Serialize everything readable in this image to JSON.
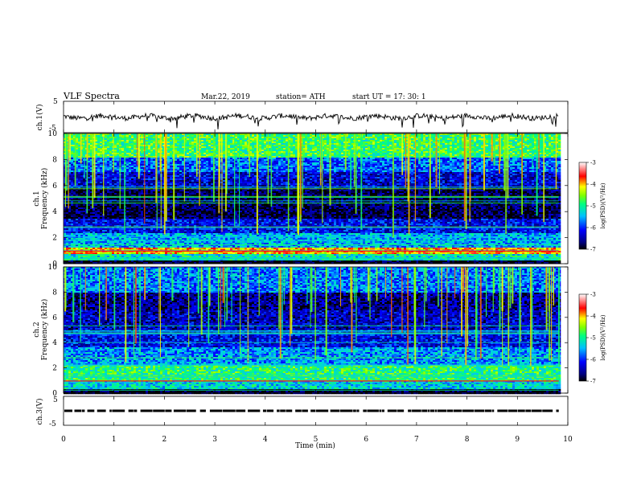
{
  "header": {
    "title": "VLF  Spectra",
    "date": "Mar.22, 2019",
    "station": "station= ATH",
    "start": "start  UT  =    17: 30: 1"
  },
  "chart_data": {
    "type": "heatmap",
    "xlabel": "Time  (min)",
    "xlim": [
      0,
      10
    ],
    "xticks": [
      "0",
      "1",
      "2",
      "3",
      "4",
      "5",
      "6",
      "7",
      "8",
      "9",
      "10"
    ],
    "waveform_panels": [
      {
        "ylabel": "ch.1(V)",
        "ylim": [
          -5,
          5
        ],
        "yticks": [
          "5",
          "-5"
        ],
        "baseline": 0
      },
      {
        "ylabel": "ch.3(V)",
        "ylim": [
          -5,
          5
        ],
        "yticks": [
          "5",
          "-5"
        ],
        "baseline": 0
      }
    ],
    "spectrogram_panels": [
      {
        "ylabel": "ch.1\nFrequency (kHz)",
        "ylim": [
          0,
          10
        ],
        "yticks": [
          "0",
          "2",
          "4",
          "6",
          "8",
          "10"
        ],
        "colorbar": {
          "label": "log(PSD)(V²/Hz)",
          "range": [
            -7,
            -3
          ],
          "ticks": [
            "-3",
            "-4",
            "-5",
            "-6",
            "-7"
          ]
        },
        "bands_khz": [
          {
            "range": [
              0,
              0.3
            ],
            "level": -7.0
          },
          {
            "range": [
              0.3,
              0.8
            ],
            "level": -5.2
          },
          {
            "range": [
              0.8,
              1.2
            ],
            "level": -4.0
          },
          {
            "range": [
              1.2,
              2.4
            ],
            "level": -5.5
          },
          {
            "range": [
              2.4,
              3.4
            ],
            "level": -6.2
          },
          {
            "range": [
              3.4,
              5.8
            ],
            "level": -6.8
          },
          {
            "range": [
              5.8,
              7.0
            ],
            "level": -6.3
          },
          {
            "range": [
              7.0,
              8.2
            ],
            "level": -5.8
          },
          {
            "range": [
              8.2,
              10.0
            ],
            "level": -4.8
          }
        ]
      },
      {
        "ylabel": "ch.2\nFrequency (kHz)",
        "ylim": [
          0,
          10
        ],
        "yticks": [
          "0",
          "2",
          "4",
          "6",
          "8",
          "10"
        ],
        "colorbar": {
          "label": "log(PSD)(V²/Hz)",
          "range": [
            -7,
            -3
          ],
          "ticks": [
            "-3",
            "-4",
            "-5",
            "-6",
            "-7"
          ]
        },
        "bands_khz": [
          {
            "range": [
              0,
              0.3
            ],
            "level": -7.0
          },
          {
            "range": [
              0.3,
              1.0
            ],
            "level": -5.3
          },
          {
            "range": [
              1.0,
              2.2
            ],
            "level": -4.9
          },
          {
            "range": [
              2.2,
              3.6
            ],
            "level": -5.6
          },
          {
            "range": [
              3.6,
              5.0
            ],
            "level": -6.2
          },
          {
            "range": [
              5.0,
              6.5
            ],
            "level": -6.4
          },
          {
            "range": [
              6.5,
              8.0
            ],
            "level": -6.6
          },
          {
            "range": [
              8.0,
              10.0
            ],
            "level": -5.7
          }
        ]
      }
    ],
    "data_end_min": 9.82
  }
}
